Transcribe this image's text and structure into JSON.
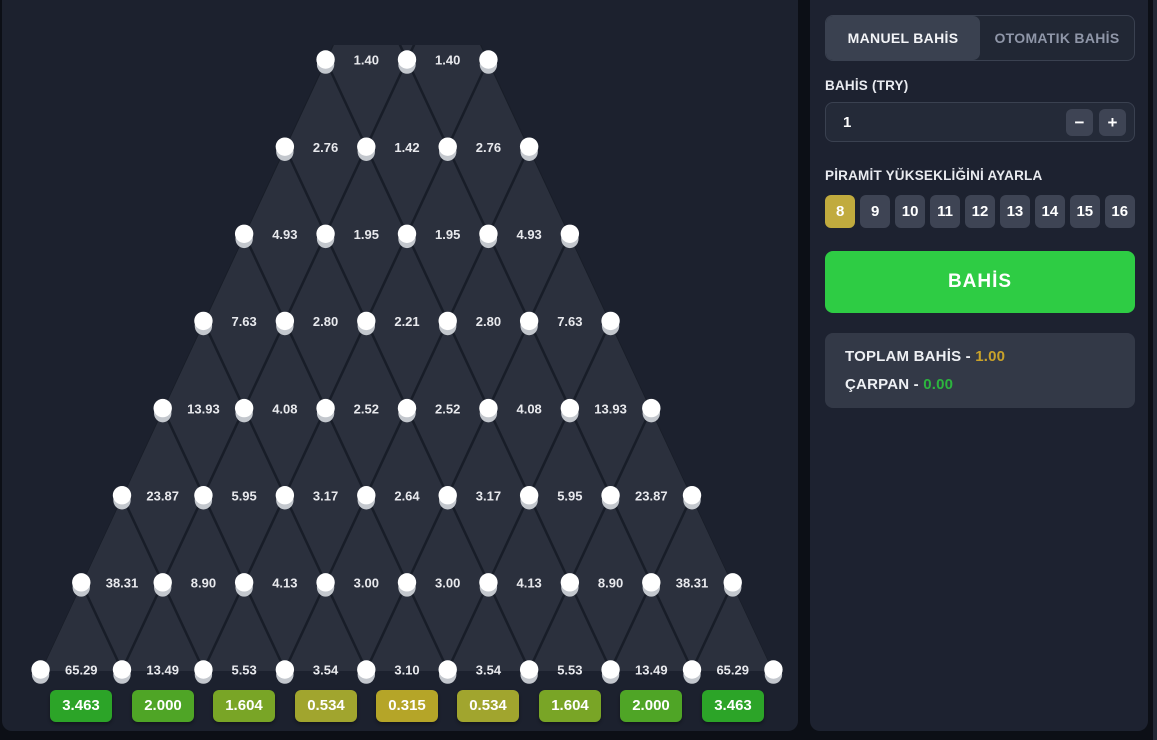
{
  "game": {
    "rows": [
      [
        "1.40",
        "1.40"
      ],
      [
        "2.76",
        "1.42",
        "2.76"
      ],
      [
        "4.93",
        "1.95",
        "1.95",
        "4.93"
      ],
      [
        "7.63",
        "2.80",
        "2.21",
        "2.80",
        "7.63"
      ],
      [
        "13.93",
        "4.08",
        "2.52",
        "2.52",
        "4.08",
        "13.93"
      ],
      [
        "23.87",
        "5.95",
        "3.17",
        "2.64",
        "3.17",
        "5.95",
        "23.87"
      ],
      [
        "38.31",
        "8.90",
        "4.13",
        "3.00",
        "3.00",
        "4.13",
        "8.90",
        "38.31"
      ],
      [
        "65.29",
        "13.49",
        "5.53",
        "3.54",
        "3.10",
        "3.54",
        "5.53",
        "13.49",
        "65.29"
      ]
    ],
    "slots": [
      {
        "label": "3.463",
        "color": "#2ca428"
      },
      {
        "label": "2.000",
        "color": "#4fa526"
      },
      {
        "label": "1.604",
        "color": "#79a526"
      },
      {
        "label": "0.534",
        "color": "#a1a52e"
      },
      {
        "label": "0.315",
        "color": "#b5a528"
      },
      {
        "label": "0.534",
        "color": "#a1a52e"
      },
      {
        "label": "1.604",
        "color": "#79a526"
      },
      {
        "label": "2.000",
        "color": "#4fa526"
      },
      {
        "label": "3.463",
        "color": "#2ca428"
      }
    ],
    "board_colors": {
      "background": "#1c212e",
      "pyramid_fill": "#2b303d",
      "lattice_line": "#181d28",
      "peg": "#ffffff",
      "peg_shadow": "#c3c7cd",
      "value_text": "#e8e9ed"
    }
  },
  "sidebar": {
    "tabs": {
      "manual": "MANUEL BAHİS",
      "auto": "OTOMATIK BAHİS",
      "active": "MANUEL BAHİS"
    },
    "bet": {
      "label": "BAHİS (TRY)",
      "value": "1",
      "decrease": "−",
      "increase": "+"
    },
    "height": {
      "label": "PİRAMİT YÜKSEKLİĞİNİ AYARLA",
      "options": [
        "8",
        "9",
        "10",
        "11",
        "12",
        "13",
        "14",
        "15",
        "16"
      ],
      "selected": "8",
      "selected_color": "#c1ab3e"
    },
    "bet_button": {
      "label": "BAHİS",
      "color": "#2ecc44"
    },
    "summary": {
      "total_label": "TOPLAM BAHİS -",
      "total_value": "1.00",
      "total_color": "#c9a22a",
      "multiplier_label": "ÇARPAN -",
      "multiplier_value": "0.00",
      "multiplier_color": "#2cb53e"
    }
  }
}
